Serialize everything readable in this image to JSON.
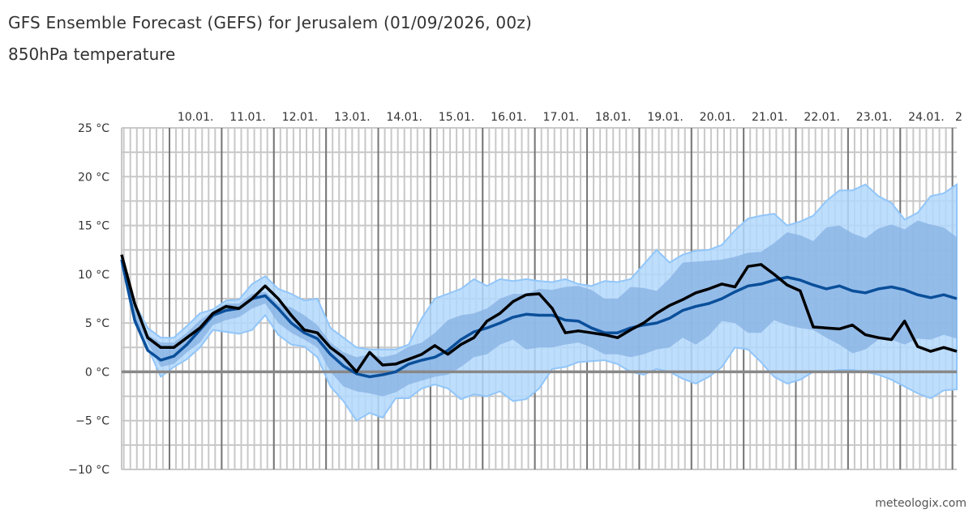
{
  "header": {
    "title": "GFS Ensemble Forecast (GEFS) for Jerusalem (01/09/2026, 00z)",
    "subtitle": "850hPa temperature"
  },
  "credit": "meteologix.com",
  "colors": {
    "band_outer": "#b3d8fd",
    "band_outer_edge": "#91c6fa",
    "band_inner": "#86b0e2",
    "mean": "#0a4f9a",
    "control": "#000000",
    "grid_minor": "#c8c8c8",
    "grid_major": "#777777"
  },
  "chart_data": {
    "type": "area",
    "title": "850hPa temperature",
    "ylim": [
      -10,
      25
    ],
    "y_ticks": [
      "25 °C",
      "20 °C",
      "15 °C",
      "10 °C",
      "5 °C",
      "0 °C",
      "−5 °C",
      "−10 °C"
    ],
    "y_tick_values": [
      25,
      20,
      15,
      10,
      5,
      0,
      -5,
      -10
    ],
    "x_day_labels": [
      "10.01.",
      "11.01.",
      "12.01.",
      "13.01.",
      "14.01.",
      "15.01.",
      "16.01.",
      "17.01.",
      "18.01.",
      "19.01.",
      "20.01.",
      "21.01.",
      "22.01.",
      "23.01.",
      "24.01.",
      "2"
    ],
    "grid": true,
    "x": [
      "09.01. 02:00",
      "09.01. 08:00",
      "09.01. 14:00",
      "09.01. 20:00",
      "10.01. 02:00",
      "10.01. 08:00",
      "10.01. 14:00",
      "10.01. 20:00",
      "11.01. 02:00",
      "11.01. 08:00",
      "11.01. 14:00",
      "11.01. 20:00",
      "12.01. 02:00",
      "12.01. 08:00",
      "12.01. 14:00",
      "12.01. 20:00",
      "13.01. 02:00",
      "13.01. 08:00",
      "13.01. 14:00",
      "13.01. 20:00",
      "14.01. 02:00",
      "14.01. 08:00",
      "14.01. 14:00",
      "14.01. 20:00",
      "15.01. 02:00",
      "15.01. 08:00",
      "15.01. 14:00",
      "15.01. 20:00",
      "16.01. 02:00",
      "16.01. 08:00",
      "16.01. 14:00",
      "16.01. 20:00",
      "17.01. 02:00",
      "17.01. 08:00",
      "17.01. 14:00",
      "17.01. 20:00",
      "18.01. 02:00",
      "18.01. 08:00",
      "18.01. 14:00",
      "18.01. 20:00",
      "19.01. 02:00",
      "19.01. 08:00",
      "19.01. 14:00",
      "19.01. 20:00",
      "20.01. 02:00",
      "20.01. 08:00",
      "20.01. 14:00",
      "20.01. 20:00",
      "21.01. 02:00",
      "21.01. 08:00",
      "21.01. 14:00",
      "21.01. 20:00",
      "22.01. 02:00",
      "22.01. 08:00",
      "22.01. 14:00",
      "22.01. 20:00",
      "23.01. 02:00",
      "23.01. 08:00",
      "23.01. 14:00",
      "23.01. 20:00",
      "24.01. 02:00",
      "24.01. 08:00",
      "24.01. 14:00",
      "24.01. 20:00",
      "25.01. 02:00"
    ],
    "bands": [
      {
        "kind": "outer",
        "upper": [
          12,
          7,
          4.5,
          3.5,
          3.5,
          4.7,
          6,
          6.4,
          7.3,
          7.4,
          9,
          9.8,
          8.5,
          8,
          7.3,
          7.5,
          4.5,
          3.5,
          2.5,
          2.3,
          2.3,
          2.3,
          2.8,
          5.5,
          7.5,
          8,
          8.5,
          9.5,
          8.8,
          9.5,
          9.3,
          9.5,
          9.3,
          9.2,
          9.5,
          9,
          8.8,
          9.3,
          9.2,
          9.5,
          11,
          12.5,
          11.2,
          12,
          12.4,
          12.5,
          13,
          14.5,
          15.7,
          16,
          16.2,
          15,
          15.4,
          16,
          17.5,
          18.6,
          18.6,
          19.2,
          18,
          17.3,
          15.6,
          16.3,
          18,
          18.3,
          19.2
        ],
        "lower": [
          11,
          5,
          2.5,
          -0.5,
          0.5,
          1.3,
          2.5,
          4.3,
          4.1,
          3.9,
          4.3,
          5.8,
          3.8,
          2.8,
          2.6,
          1.5,
          -1.5,
          -3,
          -5,
          -4.2,
          -4.7,
          -2.7,
          -2.7,
          -1.7,
          -1.3,
          -1.7,
          -2.8,
          -2.3,
          -2.5,
          -2,
          -3,
          -2.8,
          -1.7,
          0.3,
          0.5,
          1,
          1.1,
          1.2,
          0.8,
          0,
          -0.3,
          0.3,
          0,
          -0.7,
          -1.2,
          -0.5,
          0.5,
          2.5,
          2.3,
          1,
          -0.5,
          -1.2,
          -0.8,
          0,
          0,
          0.2,
          0.2,
          0,
          -0.3,
          -0.8,
          -1.5,
          -2.2,
          -2.7,
          -1.9,
          -1.8
        ]
      },
      {
        "kind": "inner",
        "upper": [
          11.8,
          6.5,
          3.8,
          3,
          3,
          4,
          5.3,
          6.2,
          7,
          7,
          8,
          8.2,
          7,
          6.6,
          5.8,
          4.8,
          3,
          2,
          1.5,
          1.8,
          1.5,
          1.8,
          2.6,
          3,
          4,
          5.3,
          5.8,
          6,
          6.5,
          7.5,
          8,
          8,
          8.5,
          8.4,
          8.7,
          8.8,
          8.4,
          7.5,
          7.5,
          8.7,
          8.6,
          8.3,
          9.6,
          11.2,
          11.3,
          11.4,
          11.5,
          11.8,
          12.2,
          12.3,
          13.2,
          14.3,
          14,
          13.4,
          14.8,
          15,
          14.2,
          13.7,
          14.7,
          15.1,
          14.6,
          15.5,
          15.1,
          14.8,
          13.8
        ],
        "lower": [
          11,
          5.5,
          3,
          0.5,
          0.8,
          2,
          3,
          4.8,
          5.3,
          5.6,
          6.5,
          7,
          5,
          4,
          3.3,
          2.5,
          0,
          -1.5,
          -2,
          -2.2,
          -2.5,
          -2.1,
          -1.3,
          -0.9,
          -0.5,
          -0.3,
          0.5,
          1.5,
          1.8,
          2.8,
          3.3,
          2.3,
          2.5,
          2.5,
          2.8,
          3,
          2.5,
          1.8,
          1.8,
          1.5,
          1.8,
          2.3,
          2.5,
          3.5,
          2.8,
          3.7,
          5.2,
          5,
          4,
          4,
          5.3,
          4.8,
          4.5,
          4.3,
          3.5,
          2.8,
          1.9,
          2.3,
          3.3,
          3.3,
          2.8,
          3.4,
          3.3,
          3.8,
          3.4
        ]
      }
    ],
    "series": [
      {
        "kind": "mean",
        "values": [
          11.5,
          5.3,
          2.2,
          1.2,
          1.6,
          2.8,
          4.3,
          5.8,
          6.3,
          6.5,
          7.5,
          7.8,
          6.5,
          5,
          4,
          3.4,
          1.8,
          0.6,
          -0.2,
          -0.5,
          -0.3,
          0,
          0.8,
          1.2,
          1.5,
          2.2,
          3.3,
          4.1,
          4.5,
          5,
          5.6,
          5.9,
          5.8,
          5.8,
          5.3,
          5.2,
          4.5,
          4,
          4,
          4.5,
          4.8,
          5,
          5.5,
          6.3,
          6.7,
          7,
          7.5,
          8.2,
          8.8,
          9,
          9.4,
          9.7,
          9.4,
          8.9,
          8.5,
          8.8,
          8.3,
          8.1,
          8.5,
          8.7,
          8.4,
          7.9,
          7.6,
          7.9,
          7.5
        ]
      },
      {
        "kind": "control",
        "values": [
          12,
          7,
          3.5,
          2.5,
          2.5,
          3.5,
          4.5,
          6,
          6.7,
          6.5,
          7.5,
          8.8,
          7.5,
          5.8,
          4.3,
          4,
          2.5,
          1.5,
          0,
          2,
          0.7,
          0.8,
          1.3,
          1.8,
          2.7,
          1.8,
          2.8,
          3.5,
          5.2,
          6,
          7.2,
          7.9,
          8,
          6.5,
          4,
          4.2,
          4,
          3.8,
          3.5,
          4.3,
          5,
          6,
          6.8,
          7.4,
          8.1,
          8.5,
          9,
          8.7,
          10.8,
          11,
          10,
          8.9,
          8.3,
          4.6,
          4.5,
          4.4,
          4.8,
          3.8,
          3.5,
          3.3,
          5.2,
          2.6,
          2.1,
          2.5,
          2.1
        ]
      }
    ]
  }
}
